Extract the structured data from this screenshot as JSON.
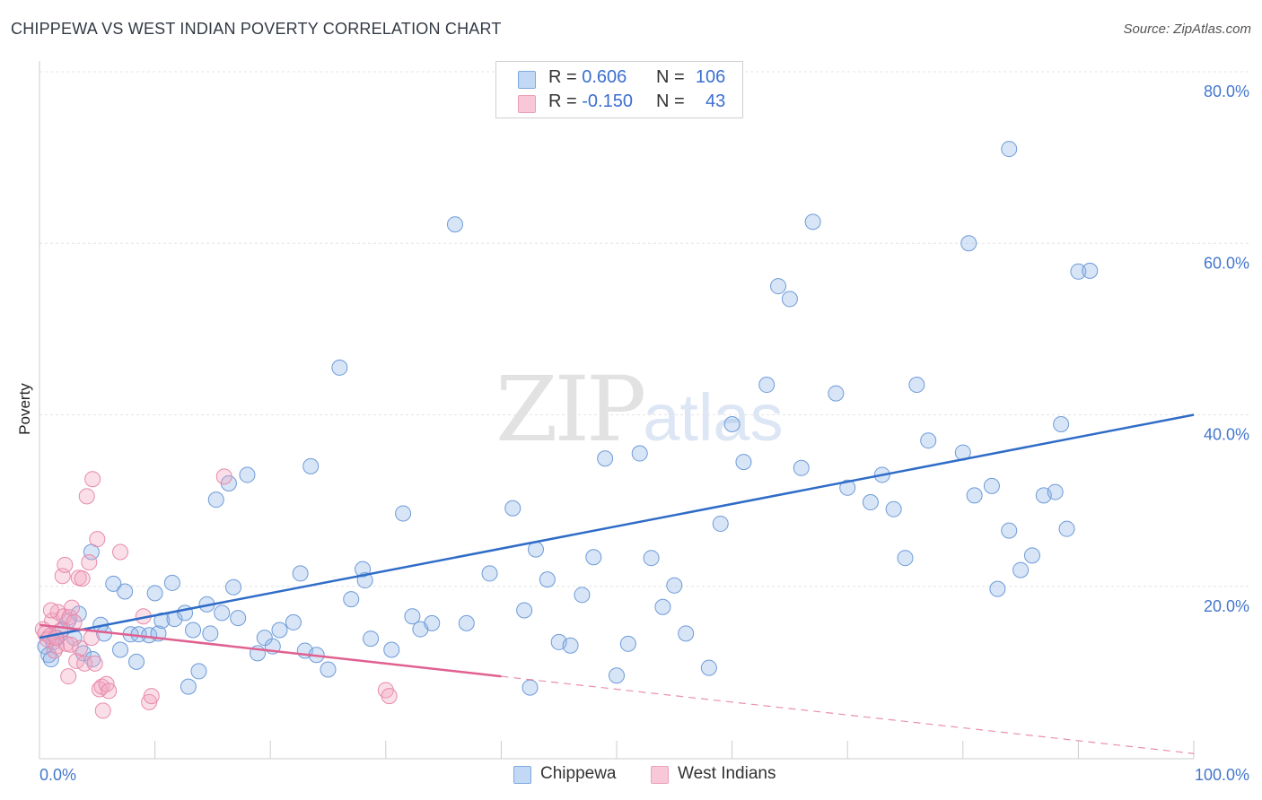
{
  "title": "CHIPPEWA VS WEST INDIAN POVERTY CORRELATION CHART",
  "source": "Source: ZipAtlas.com",
  "watermark": {
    "zip": "ZIP",
    "atlas": "atlas"
  },
  "colors": {
    "chippewa": "#8db4e8",
    "chippewa_line": "#2f6cc7",
    "west_indians": "#f2a4bf",
    "west_indians_line": "#e06090"
  },
  "legend": {
    "rows": [
      {
        "r_label": "R = ",
        "r_value": "0.606",
        "n_label": "N = ",
        "n_value": "106"
      },
      {
        "r_label": "R = ",
        "r_value": "-0.150",
        "n_label": "N = ",
        "n_value": "43"
      }
    ],
    "bottom": [
      {
        "label": "Chippewa"
      },
      {
        "label": "West Indians"
      }
    ]
  },
  "chart_data": {
    "type": "scatter",
    "title": "CHIPPEWA VS WEST INDIAN POVERTY CORRELATION CHART",
    "xlabel": "",
    "ylabel": "Poverty",
    "xlim": [
      0,
      100
    ],
    "ylim": [
      0,
      82
    ],
    "x_tick_labels": [
      "0.0%",
      "100.0%"
    ],
    "y_ticks": [
      20,
      40,
      60,
      80
    ],
    "y_tick_labels": [
      "20.0%",
      "40.0%",
      "60.0%",
      "80.0%"
    ],
    "grid": true,
    "legend_placement": "top-center",
    "series": [
      {
        "name": "Chippewa",
        "color": "#8db4e8",
        "trend": {
          "x": [
            0,
            100
          ],
          "y": [
            14.0,
            40.0
          ],
          "style": "solid"
        },
        "points": [
          [
            0.5,
            13.0
          ],
          [
            0.8,
            12.0
          ],
          [
            1.0,
            11.5
          ],
          [
            1.2,
            13.5
          ],
          [
            1.5,
            14.0
          ],
          [
            2.0,
            15.0
          ],
          [
            2.5,
            16.0
          ],
          [
            3.0,
            14.0
          ],
          [
            3.4,
            16.8
          ],
          [
            3.8,
            12.2
          ],
          [
            4.5,
            24.0
          ],
          [
            4.6,
            11.5
          ],
          [
            5.3,
            15.5
          ],
          [
            5.6,
            14.5
          ],
          [
            6.4,
            20.3
          ],
          [
            7.0,
            12.6
          ],
          [
            7.4,
            19.4
          ],
          [
            7.9,
            14.4
          ],
          [
            8.4,
            11.2
          ],
          [
            8.6,
            14.4
          ],
          [
            9.5,
            14.3
          ],
          [
            10.0,
            19.2
          ],
          [
            10.3,
            14.5
          ],
          [
            10.6,
            16.0
          ],
          [
            11.5,
            20.4
          ],
          [
            11.7,
            16.2
          ],
          [
            12.6,
            16.9
          ],
          [
            12.9,
            8.3
          ],
          [
            13.3,
            14.9
          ],
          [
            13.8,
            10.1
          ],
          [
            14.5,
            17.9
          ],
          [
            14.8,
            14.5
          ],
          [
            15.3,
            30.1
          ],
          [
            15.8,
            16.9
          ],
          [
            16.4,
            32.0
          ],
          [
            16.8,
            19.9
          ],
          [
            17.2,
            16.3
          ],
          [
            18.0,
            33.0
          ],
          [
            18.9,
            12.2
          ],
          [
            19.5,
            14.0
          ],
          [
            20.2,
            13.0
          ],
          [
            20.8,
            14.9
          ],
          [
            22.0,
            15.8
          ],
          [
            22.6,
            21.5
          ],
          [
            23.0,
            12.5
          ],
          [
            23.5,
            34.0
          ],
          [
            24.0,
            12.0
          ],
          [
            26.0,
            45.5
          ],
          [
            27.0,
            18.5
          ],
          [
            28.0,
            22.0
          ],
          [
            28.2,
            20.7
          ],
          [
            28.7,
            13.9
          ],
          [
            30.5,
            12.6
          ],
          [
            31.5,
            28.5
          ],
          [
            32.3,
            16.5
          ],
          [
            33.0,
            15.0
          ],
          [
            34.0,
            15.7
          ],
          [
            37.0,
            15.7
          ],
          [
            39.0,
            21.5
          ],
          [
            41.0,
            29.1
          ],
          [
            42.0,
            17.2
          ],
          [
            42.5,
            8.2
          ],
          [
            43.0,
            24.3
          ],
          [
            44.0,
            20.8
          ],
          [
            45.0,
            13.5
          ],
          [
            46.0,
            13.1
          ],
          [
            47.0,
            19.0
          ],
          [
            48.0,
            23.4
          ],
          [
            49.0,
            34.9
          ],
          [
            50.0,
            9.6
          ],
          [
            51.0,
            13.3
          ],
          [
            52.0,
            35.5
          ],
          [
            53.0,
            23.3
          ],
          [
            54.0,
            17.6
          ],
          [
            55.0,
            20.1
          ],
          [
            56.0,
            14.5
          ],
          [
            59.0,
            27.3
          ],
          [
            60.0,
            38.9
          ],
          [
            61.0,
            34.5
          ],
          [
            63.0,
            43.5
          ],
          [
            64.0,
            55.0
          ],
          [
            65.0,
            53.5
          ],
          [
            66.0,
            33.8
          ],
          [
            67.0,
            62.5
          ],
          [
            69.0,
            42.5
          ],
          [
            70.0,
            31.5
          ],
          [
            72.0,
            29.8
          ],
          [
            73.0,
            33.0
          ],
          [
            74.0,
            29.0
          ],
          [
            75.0,
            23.3
          ],
          [
            76.0,
            43.5
          ],
          [
            77.0,
            37.0
          ],
          [
            80.0,
            35.6
          ],
          [
            81.0,
            30.6
          ],
          [
            82.5,
            31.7
          ],
          [
            83.0,
            19.7
          ],
          [
            84.0,
            26.5
          ],
          [
            85.0,
            21.9
          ],
          [
            86.0,
            23.6
          ],
          [
            87.0,
            30.6
          ],
          [
            88.0,
            31.0
          ],
          [
            88.5,
            38.9
          ],
          [
            89.0,
            26.7
          ],
          [
            90.0,
            56.7
          ],
          [
            36.0,
            62.2
          ],
          [
            84.0,
            71.0
          ],
          [
            80.5,
            60.0
          ],
          [
            91.0,
            56.8
          ],
          [
            58.0,
            10.5
          ],
          [
            25.0,
            10.3
          ]
        ]
      },
      {
        "name": "West Indians",
        "color": "#f2a4bf",
        "trend": {
          "x": [
            0,
            40
          ],
          "y": [
            15.5,
            9.5
          ],
          "style": "solid",
          "extended": {
            "x": [
              40,
              100
            ],
            "y": [
              9.5,
              0.5
            ],
            "style": "dashed"
          }
        },
        "points": [
          [
            0.3,
            15.0
          ],
          [
            0.5,
            14.5
          ],
          [
            0.7,
            13.8
          ],
          [
            0.9,
            14.2
          ],
          [
            1.1,
            16.0
          ],
          [
            1.3,
            12.5
          ],
          [
            1.5,
            13.0
          ],
          [
            1.6,
            17.0
          ],
          [
            1.8,
            14.8
          ],
          [
            2.0,
            21.2
          ],
          [
            2.1,
            16.5
          ],
          [
            2.2,
            22.5
          ],
          [
            2.3,
            13.3
          ],
          [
            2.5,
            9.5
          ],
          [
            2.6,
            16.4
          ],
          [
            2.8,
            17.5
          ],
          [
            3.0,
            15.8
          ],
          [
            3.2,
            11.3
          ],
          [
            3.4,
            21.0
          ],
          [
            3.5,
            12.8
          ],
          [
            3.7,
            20.9
          ],
          [
            3.9,
            11.0
          ],
          [
            4.1,
            30.5
          ],
          [
            4.3,
            22.8
          ],
          [
            4.5,
            14.0
          ],
          [
            4.6,
            32.5
          ],
          [
            4.8,
            11.0
          ],
          [
            5.0,
            25.5
          ],
          [
            5.2,
            8.0
          ],
          [
            5.4,
            8.3
          ],
          [
            5.5,
            5.5
          ],
          [
            5.8,
            8.6
          ],
          [
            6.0,
            7.8
          ],
          [
            7.0,
            24.0
          ],
          [
            9.0,
            16.5
          ],
          [
            9.5,
            6.5
          ],
          [
            9.7,
            7.2
          ],
          [
            16.0,
            32.8
          ],
          [
            30.0,
            7.9
          ],
          [
            30.3,
            7.2
          ],
          [
            1.0,
            17.2
          ],
          [
            1.4,
            14.0
          ],
          [
            2.7,
            13.2
          ]
        ]
      }
    ]
  }
}
